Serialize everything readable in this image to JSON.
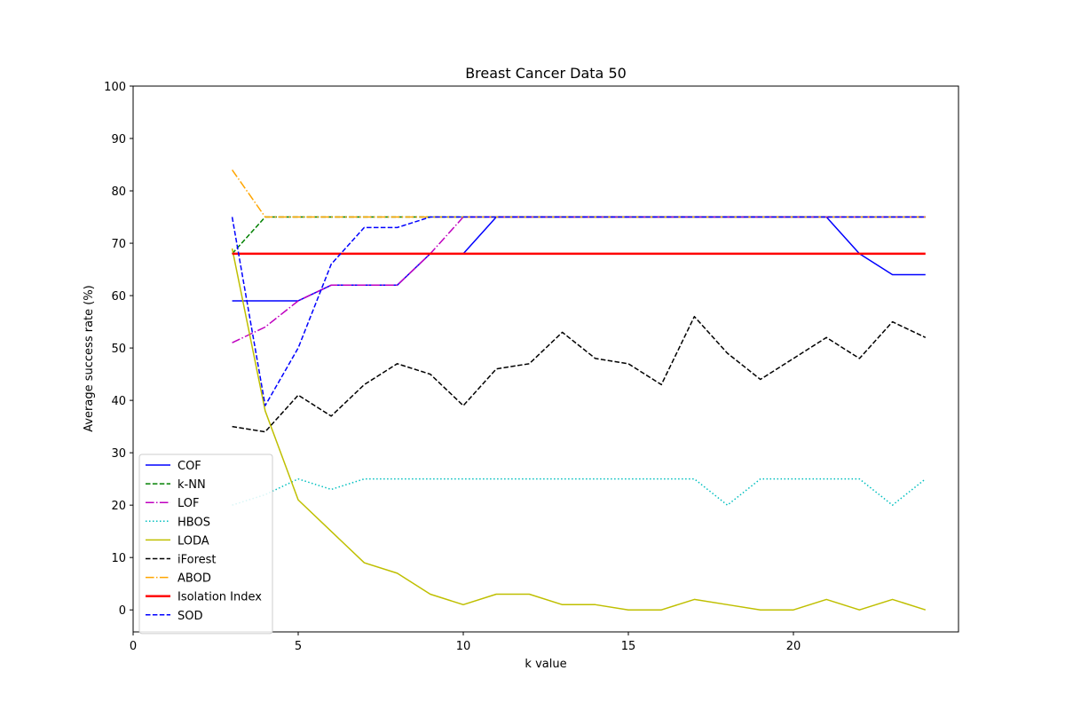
{
  "chart_data": {
    "type": "line",
    "title": "Breast Cancer Data 50",
    "xlabel": "k value",
    "ylabel": "Average success rate (%)",
    "xlim": [
      0,
      25
    ],
    "ylim": [
      -4.2,
      100
    ],
    "xticks": [
      0,
      5,
      10,
      15,
      20
    ],
    "yticks": [
      0,
      10,
      20,
      30,
      40,
      50,
      60,
      70,
      80,
      90,
      100
    ],
    "grid": false,
    "legend_position": "lower-left",
    "x": [
      3,
      4,
      5,
      6,
      7,
      8,
      9,
      10,
      11,
      12,
      13,
      14,
      15,
      16,
      17,
      18,
      19,
      20,
      21,
      22,
      23,
      24
    ],
    "series": [
      {
        "name": "COF",
        "color": "#0000ff",
        "style": "solid",
        "values": [
          59,
          59,
          59,
          62,
          62,
          62,
          68,
          68,
          75,
          75,
          75,
          75,
          75,
          75,
          75,
          75,
          75,
          75,
          75,
          68,
          64,
          64
        ]
      },
      {
        "name": "k-NN",
        "color": "#008000",
        "style": "dashed",
        "values": [
          68,
          75,
          75,
          75,
          75,
          75,
          75,
          75,
          75,
          75,
          75,
          75,
          75,
          75,
          75,
          75,
          75,
          75,
          75,
          75,
          75,
          75
        ]
      },
      {
        "name": "LOF",
        "color": "#bf00bf",
        "style": "dashdot",
        "values": [
          51,
          54,
          59,
          62,
          62,
          62,
          68,
          75,
          75,
          75,
          75,
          75,
          75,
          75,
          75,
          75,
          75,
          75,
          75,
          75,
          75,
          75
        ]
      },
      {
        "name": "HBOS",
        "color": "#00bfbf",
        "style": "dotted",
        "values": [
          20,
          22,
          25,
          23,
          25,
          25,
          25,
          25,
          25,
          25,
          25,
          25,
          25,
          25,
          25,
          20,
          25,
          25,
          25,
          25,
          20,
          25
        ]
      },
      {
        "name": "LODA",
        "color": "#bfbf00",
        "style": "solid",
        "values": [
          69,
          38,
          21,
          15,
          9,
          7,
          3,
          1,
          3,
          3,
          1,
          1,
          0,
          0,
          2,
          1,
          0,
          0,
          2,
          0,
          2,
          0
        ]
      },
      {
        "name": "iForest",
        "color": "#000000",
        "style": "dashed",
        "values": [
          35,
          34,
          41,
          37,
          43,
          47,
          45,
          39,
          46,
          47,
          53,
          48,
          47,
          43,
          56,
          49,
          44,
          48,
          52,
          48,
          55,
          52
        ]
      },
      {
        "name": "ABOD",
        "color": "#ffa500",
        "style": "dashdot",
        "values": [
          84,
          75,
          75,
          75,
          75,
          75,
          75,
          75,
          75,
          75,
          75,
          75,
          75,
          75,
          75,
          75,
          75,
          75,
          75,
          75,
          75,
          75
        ]
      },
      {
        "name": "Isolation Index",
        "color": "#ff0000",
        "style": "thick",
        "values": [
          68,
          68,
          68,
          68,
          68,
          68,
          68,
          68,
          68,
          68,
          68,
          68,
          68,
          68,
          68,
          68,
          68,
          68,
          68,
          68,
          68,
          68
        ]
      },
      {
        "name": "SOD",
        "color": "#0000ff",
        "style": "dashed",
        "values": [
          75,
          39,
          50,
          66,
          73,
          73,
          75,
          75,
          75,
          75,
          75,
          75,
          75,
          75,
          75,
          75,
          75,
          75,
          75,
          75,
          75,
          75
        ]
      }
    ]
  }
}
